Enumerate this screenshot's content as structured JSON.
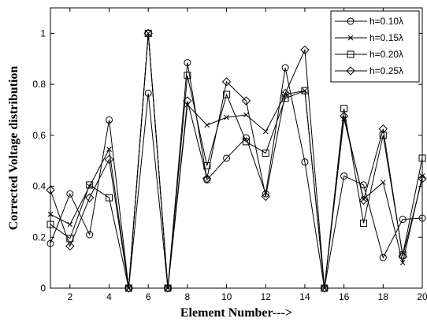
{
  "chart_data": {
    "type": "line",
    "xlabel": "Element Number--->",
    "ylabel": "Corrected Voltage distribution",
    "xlim": [
      1,
      20
    ],
    "ylim": [
      0,
      1.1
    ],
    "xticks": [
      2,
      4,
      6,
      8,
      10,
      12,
      14,
      16,
      18,
      20
    ],
    "yticks": [
      0,
      0.2,
      0.4,
      0.6,
      0.8,
      1
    ],
    "grid": false,
    "legend_position": "top-right",
    "line_color": "#000000",
    "x": [
      1,
      2,
      3,
      4,
      5,
      6,
      7,
      8,
      9,
      10,
      11,
      12,
      13,
      14,
      15,
      16,
      17,
      18,
      19,
      20
    ],
    "series": [
      {
        "name": "h=0.10λ",
        "marker": "circle",
        "values": [
          0.175,
          0.37,
          0.21,
          0.66,
          0,
          0.765,
          0,
          0.885,
          0.425,
          0.51,
          0.59,
          0.37,
          0.865,
          0.495,
          0,
          0.44,
          0.405,
          0.12,
          0.27,
          0.275
        ]
      },
      {
        "name": "h=0.15λ",
        "marker": "x",
        "values": [
          0.29,
          0.25,
          0.4,
          0.545,
          0,
          1.0,
          0,
          0.72,
          0.64,
          0.67,
          0.68,
          0.615,
          0.76,
          0.775,
          0,
          0.665,
          0.35,
          0.415,
          0.1,
          0.44
        ]
      },
      {
        "name": "h=0.20λ",
        "marker": "square",
        "values": [
          0.25,
          0.195,
          0.405,
          0.355,
          0,
          1.0,
          0,
          0.835,
          0.48,
          0.76,
          0.575,
          0.53,
          0.745,
          0.775,
          0,
          0.705,
          0.255,
          0.6,
          0.13,
          0.51
        ]
      },
      {
        "name": "h=0.25λ",
        "marker": "diamond",
        "values": [
          0.385,
          0.165,
          0.355,
          0.505,
          0,
          1.0,
          0,
          0.735,
          0.43,
          0.81,
          0.735,
          0.36,
          0.765,
          0.935,
          0,
          0.675,
          0.345,
          0.625,
          0.125,
          0.43
        ]
      }
    ]
  }
}
